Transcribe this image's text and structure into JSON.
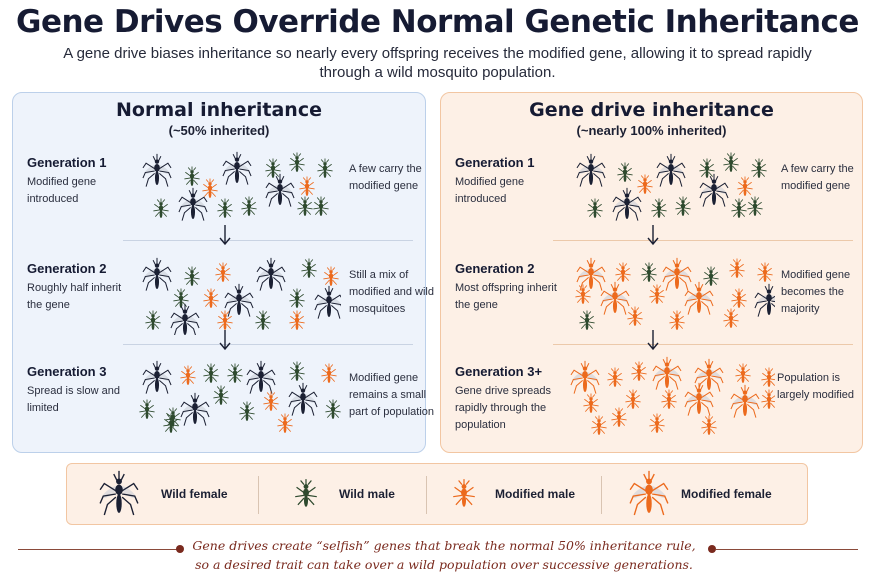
{
  "title": "Gene Drives Override Normal Genetic Inheritance",
  "subtitle": "A gene drive biases inheritance so nearly every offspring receives the modified gene, allowing it to spread rapidly through a wild mosquito population.",
  "colors": {
    "wild": "#1b2033",
    "wild_male": "#2e4a2e",
    "modified": "#ec6a1d",
    "normal_panel": "#eef3fb",
    "drive_panel": "#fdf0e6"
  },
  "panels": {
    "normal": {
      "title": "Normal inheritance",
      "subtitle": "(~50% inherited)",
      "generations": [
        {
          "title": "Generation 1",
          "desc": "Modified gene introduced",
          "note": "A few carry the modified gene"
        },
        {
          "title": "Generation 2",
          "desc": "Roughly half inherit the gene",
          "note": "Still a mix of modified and wild mosquitoes"
        },
        {
          "title": "Generation 3",
          "desc": "Spread is slow and limited",
          "note": "Modified gene remains a small part of population"
        }
      ]
    },
    "drive": {
      "title": "Gene drive inheritance",
      "subtitle": "(~nearly 100% inherited)",
      "generations": [
        {
          "title": "Generation 1",
          "desc": "Modified gene introduced",
          "note": "A few carry the modified gene"
        },
        {
          "title": "Generation 2",
          "desc": "Most offspring inherit the gene",
          "note": "Modified gene becomes the majority"
        },
        {
          "title": "Generation 3+",
          "desc": "Gene drive spreads rapidly through the population",
          "note": "Population is largely modified"
        }
      ]
    }
  },
  "legend": [
    {
      "label": "Wild female",
      "icon": "wild-female-mosquito-icon"
    },
    {
      "label": "Wild male",
      "icon": "wild-male-mosquito-icon"
    },
    {
      "label": "Modified male",
      "icon": "modified-male-mosquito-icon"
    },
    {
      "label": "Modified female",
      "icon": "modified-female-mosquito-icon"
    }
  ],
  "footer": "Gene drives create “selfish” genes that break the normal 50% inheritance rule, so a desired trait can take over a wild population over successive generations."
}
